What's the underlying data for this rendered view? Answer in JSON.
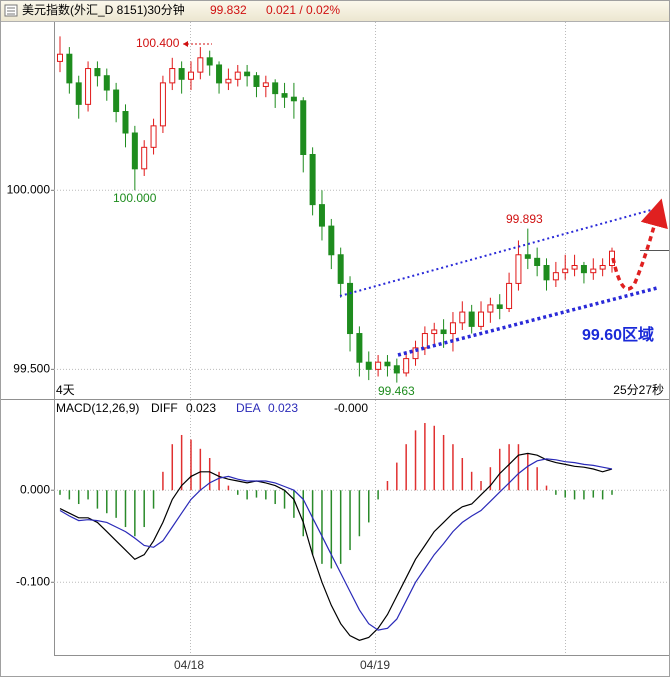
{
  "header": {
    "title": "美元指数(外汇_D 8151)30分钟",
    "price": "99.832",
    "change": "0.021 / 0.02%"
  },
  "chart_data": [
    {
      "type": "candlestick",
      "up_color": "#e01818",
      "down_color": "#1e8c1e",
      "grid": true,
      "ylim": [
        99.42,
        100.47
      ],
      "yticks": [
        {
          "value": 99.5,
          "label": "99.500"
        },
        {
          "value": 100.0,
          "label": "100.000"
        }
      ],
      "open": [
        100.36,
        100.38,
        100.3,
        100.24,
        100.34,
        100.32,
        100.28,
        100.22,
        100.16,
        100.06,
        100.12,
        100.18,
        100.3,
        100.34,
        100.31,
        100.33,
        100.37,
        100.35,
        100.3,
        100.31,
        100.33,
        100.32,
        100.29,
        100.3,
        100.27,
        100.26,
        100.25,
        100.1,
        99.96,
        99.9,
        99.82,
        99.74,
        99.6,
        99.52,
        99.5,
        99.52,
        99.51,
        99.49,
        99.53,
        99.56,
        99.6,
        99.61,
        99.6,
        99.63,
        99.66,
        99.62,
        99.66,
        99.68,
        99.67,
        99.74,
        99.82,
        99.81,
        99.79,
        99.75,
        99.77,
        99.78,
        99.79,
        99.77,
        99.78,
        99.79
      ],
      "high": [
        100.43,
        100.4,
        100.32,
        100.36,
        100.36,
        100.34,
        100.3,
        100.24,
        100.18,
        100.14,
        100.2,
        100.32,
        100.37,
        100.36,
        100.36,
        100.4,
        100.39,
        100.36,
        100.34,
        100.35,
        100.35,
        100.33,
        100.32,
        100.31,
        100.3,
        100.3,
        100.26,
        100.12,
        100.0,
        99.92,
        99.84,
        99.76,
        99.62,
        99.55,
        99.54,
        99.54,
        99.53,
        99.55,
        99.58,
        99.62,
        99.63,
        99.64,
        99.66,
        99.69,
        99.68,
        99.69,
        99.7,
        99.71,
        99.77,
        99.86,
        99.893,
        99.84,
        99.81,
        99.8,
        99.82,
        99.82,
        99.8,
        99.81,
        99.81,
        99.84
      ],
      "low": [
        100.33,
        100.27,
        100.2,
        100.22,
        100.29,
        100.25,
        100.19,
        100.12,
        100.0,
        100.04,
        100.1,
        100.16,
        100.28,
        100.27,
        100.28,
        100.31,
        100.32,
        100.27,
        100.28,
        100.29,
        100.29,
        100.26,
        100.26,
        100.23,
        100.23,
        100.2,
        100.05,
        99.93,
        99.86,
        99.78,
        99.7,
        99.55,
        99.48,
        99.47,
        99.48,
        99.48,
        99.463,
        99.48,
        99.51,
        99.54,
        99.57,
        99.56,
        99.55,
        99.61,
        99.6,
        99.61,
        99.63,
        99.64,
        99.66,
        99.72,
        99.78,
        99.76,
        99.72,
        99.73,
        99.75,
        99.76,
        99.74,
        99.75,
        99.76,
        99.77
      ],
      "close": [
        100.38,
        100.3,
        100.24,
        100.34,
        100.32,
        100.28,
        100.22,
        100.16,
        100.06,
        100.12,
        100.18,
        100.3,
        100.34,
        100.31,
        100.33,
        100.37,
        100.35,
        100.3,
        100.31,
        100.33,
        100.32,
        100.29,
        100.3,
        100.27,
        100.26,
        100.25,
        100.1,
        99.96,
        99.9,
        99.82,
        99.74,
        99.6,
        99.52,
        99.5,
        99.52,
        99.51,
        99.49,
        99.53,
        99.56,
        99.6,
        99.61,
        99.6,
        99.63,
        99.66,
        99.62,
        99.66,
        99.68,
        99.67,
        99.74,
        99.82,
        99.81,
        99.79,
        99.75,
        99.77,
        99.78,
        99.79,
        99.77,
        99.78,
        99.79,
        99.83
      ],
      "annotations": {
        "high1": "100.400",
        "low1": "100.000",
        "high2": "99.893",
        "low2": "99.463",
        "zone": "99.60区域",
        "left": "4天",
        "timer": "25分27秒"
      }
    },
    {
      "type": "macd",
      "title": "MACD(12,26,9)",
      "macd_value": "-0.000",
      "grid": true,
      "ylim": [
        -0.179,
        0.098
      ],
      "yticks": [
        {
          "value": 0,
          "label": "0.000"
        },
        {
          "value": -0.1,
          "label": "-0.100"
        }
      ],
      "x_labels": [
        "04/18",
        "04/19"
      ],
      "histogram": {
        "pos_color": "#e03030",
        "neg_color": "#2a8a2a",
        "values": [
          -0.005,
          -0.01,
          -0.015,
          -0.01,
          -0.02,
          -0.025,
          -0.03,
          -0.04,
          -0.05,
          -0.04,
          -0.02,
          0.02,
          0.05,
          0.06,
          0.055,
          0.045,
          0.035,
          0.02,
          0.005,
          -0.005,
          -0.01,
          -0.008,
          -0.01,
          -0.015,
          -0.02,
          -0.03,
          -0.05,
          -0.07,
          -0.08,
          -0.085,
          -0.08,
          -0.065,
          -0.05,
          -0.035,
          -0.01,
          0.01,
          0.03,
          0.05,
          0.065,
          0.073,
          0.07,
          0.06,
          0.05,
          0.035,
          0.02,
          0.01,
          0.025,
          0.045,
          0.05,
          0.05,
          0.04,
          0.025,
          0.005,
          -0.005,
          -0.008,
          -0.01,
          -0.01,
          -0.008,
          -0.01,
          -0.005
        ]
      },
      "series": [
        {
          "name": "DIFF",
          "current": "0.023",
          "color": "#000000",
          "values": [
            -0.02,
            -0.025,
            -0.03,
            -0.03,
            -0.035,
            -0.045,
            -0.055,
            -0.065,
            -0.075,
            -0.07,
            -0.055,
            -0.035,
            -0.01,
            0.005,
            0.015,
            0.02,
            0.02,
            0.015,
            0.012,
            0.01,
            0.008,
            0.01,
            0.008,
            0.005,
            0.0,
            -0.01,
            -0.035,
            -0.07,
            -0.1,
            -0.125,
            -0.145,
            -0.158,
            -0.163,
            -0.16,
            -0.15,
            -0.135,
            -0.115,
            -0.095,
            -0.075,
            -0.06,
            -0.045,
            -0.035,
            -0.025,
            -0.018,
            -0.015,
            -0.005,
            0.005,
            0.018,
            0.028,
            0.038,
            0.04,
            0.038,
            0.033,
            0.03,
            0.028,
            0.026,
            0.025,
            0.023,
            0.02,
            0.023
          ]
        },
        {
          "name": "DEA",
          "current": "0.023",
          "color": "#2a2ab8",
          "values": [
            -0.022,
            -0.028,
            -0.033,
            -0.032,
            -0.033,
            -0.035,
            -0.04,
            -0.045,
            -0.052,
            -0.06,
            -0.062,
            -0.055,
            -0.04,
            -0.025,
            -0.01,
            0.0,
            0.008,
            0.013,
            0.015,
            0.012,
            0.01,
            0.01,
            0.01,
            0.008,
            0.004,
            0.0,
            -0.01,
            -0.03,
            -0.05,
            -0.07,
            -0.09,
            -0.11,
            -0.13,
            -0.145,
            -0.152,
            -0.15,
            -0.14,
            -0.12,
            -0.1,
            -0.085,
            -0.07,
            -0.058,
            -0.045,
            -0.035,
            -0.028,
            -0.022,
            -0.012,
            -0.002,
            0.008,
            0.018,
            0.026,
            0.032,
            0.034,
            0.033,
            0.031,
            0.03,
            0.028,
            0.027,
            0.025,
            0.023
          ]
        }
      ]
    }
  ]
}
